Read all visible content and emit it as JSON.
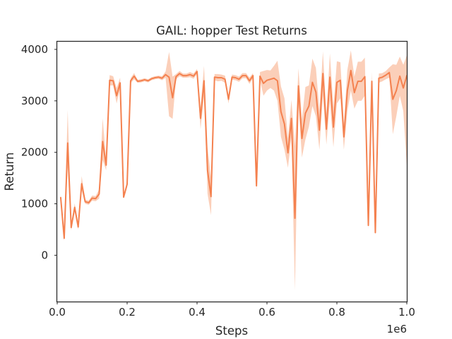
{
  "chart_data": {
    "type": "line",
    "title": "GAIL: hopper Test Returns",
    "xlabel": "Steps",
    "ylabel": "Return",
    "x_offset_label": "1e6",
    "xlim": [
      0,
      1.0
    ],
    "ylim": [
      -900,
      4150
    ],
    "x_ticks": [
      0.0,
      0.2,
      0.4,
      0.6,
      0.8,
      1.0
    ],
    "x_tick_labels": [
      "0.0",
      "0.2",
      "0.4",
      "0.6",
      "0.8",
      "1.0"
    ],
    "y_ticks": [
      0,
      1000,
      2000,
      3000,
      4000
    ],
    "y_tick_labels": [
      "0",
      "1000",
      "2000",
      "3000",
      "4000"
    ],
    "grid": false,
    "colors": {
      "line": "#f4814f",
      "band": "#f9bfa2",
      "spine": "#262626",
      "text": "#262626"
    },
    "series": [
      {
        "x": [
          0.01,
          0.02,
          0.03,
          0.04,
          0.05,
          0.06,
          0.07,
          0.08,
          0.09,
          0.1,
          0.11,
          0.12,
          0.13,
          0.14,
          0.15,
          0.16,
          0.17,
          0.18,
          0.19,
          0.2,
          0.21,
          0.22,
          0.23,
          0.24,
          0.25,
          0.26,
          0.27,
          0.28,
          0.29,
          0.3,
          0.31,
          0.32,
          0.33,
          0.34,
          0.35,
          0.36,
          0.37,
          0.38,
          0.39,
          0.4,
          0.41,
          0.42,
          0.43,
          0.44,
          0.45,
          0.46,
          0.47,
          0.48,
          0.49,
          0.5,
          0.51,
          0.52,
          0.53,
          0.54,
          0.55,
          0.56,
          0.57,
          0.58,
          0.59,
          0.6,
          0.61,
          0.62,
          0.63,
          0.64,
          0.65,
          0.66,
          0.67,
          0.68,
          0.69,
          0.7,
          0.71,
          0.72,
          0.73,
          0.74,
          0.75,
          0.76,
          0.77,
          0.78,
          0.79,
          0.8,
          0.81,
          0.82,
          0.83,
          0.84,
          0.85,
          0.86,
          0.87,
          0.88,
          0.89,
          0.9,
          0.91,
          0.92,
          0.93,
          0.94,
          0.95,
          0.96,
          0.97,
          0.98,
          0.99,
          1.0
        ],
        "y": [
          1120,
          330,
          2180,
          540,
          930,
          550,
          1390,
          1040,
          1020,
          1110,
          1100,
          1190,
          2210,
          1750,
          3400,
          3390,
          3100,
          3350,
          1130,
          1380,
          3390,
          3480,
          3380,
          3390,
          3410,
          3390,
          3430,
          3450,
          3460,
          3440,
          3510,
          3460,
          3060,
          3470,
          3530,
          3490,
          3490,
          3510,
          3480,
          3570,
          2660,
          3390,
          1650,
          1140,
          3460,
          3450,
          3450,
          3420,
          3030,
          3460,
          3450,
          3420,
          3490,
          3490,
          3390,
          3490,
          1350,
          3480,
          3340,
          3400,
          3420,
          3440,
          3390,
          2790,
          2550,
          1990,
          2660,
          720,
          3290,
          2270,
          2760,
          2900,
          3360,
          3170,
          2430,
          3530,
          2450,
          3460,
          2490,
          3360,
          3400,
          2300,
          3200,
          3590,
          3160,
          3380,
          3380,
          3470,
          580,
          3380,
          440,
          3440,
          3460,
          3500,
          3550,
          3030,
          3200,
          3480,
          3250,
          3490
        ],
        "lower": [
          1050,
          280,
          1700,
          480,
          850,
          500,
          1260,
          1000,
          980,
          1060,
          1050,
          1100,
          1850,
          1650,
          3300,
          3300,
          2950,
          3250,
          1100,
          1320,
          3340,
          3420,
          3350,
          3360,
          3380,
          3360,
          3400,
          3420,
          3430,
          3400,
          3450,
          2700,
          2650,
          3420,
          3480,
          3450,
          3450,
          3460,
          3430,
          3520,
          2450,
          3100,
          1200,
          780,
          3400,
          3380,
          3390,
          3350,
          2950,
          3410,
          3400,
          3370,
          3440,
          3440,
          3330,
          3440,
          1250,
          3400,
          3100,
          3200,
          3250,
          3200,
          3000,
          2300,
          2050,
          1700,
          2300,
          -680,
          2950,
          1900,
          2250,
          2500,
          2900,
          2700,
          2050,
          3100,
          2150,
          3000,
          2100,
          2950,
          3050,
          2050,
          2800,
          3200,
          2850,
          3000,
          3000,
          3100,
          500,
          3200,
          380,
          3350,
          3380,
          3420,
          3450,
          2350,
          2700,
          3100,
          2800,
          1750
        ],
        "upper": [
          1190,
          380,
          2820,
          600,
          1010,
          600,
          1540,
          1080,
          1060,
          1160,
          1150,
          1280,
          2660,
          1850,
          3500,
          3480,
          3250,
          3450,
          1160,
          1440,
          3440,
          3540,
          3410,
          3420,
          3440,
          3420,
          3460,
          3480,
          3490,
          3480,
          3570,
          3950,
          3470,
          3520,
          3580,
          3530,
          3530,
          3560,
          3530,
          3620,
          2870,
          3680,
          2100,
          1500,
          3520,
          3520,
          3510,
          3490,
          3110,
          3510,
          3500,
          3470,
          3540,
          3540,
          3450,
          3540,
          1450,
          3560,
          3580,
          3600,
          3590,
          3680,
          3780,
          3280,
          3050,
          2280,
          3020,
          2120,
          3630,
          2640,
          3270,
          3300,
          3820,
          3640,
          2810,
          3960,
          2750,
          3920,
          2880,
          3770,
          3750,
          2550,
          3600,
          3980,
          3470,
          3760,
          3760,
          3840,
          660,
          3560,
          500,
          3530,
          3540,
          3580,
          3650,
          3710,
          3700,
          3860,
          3700,
          3880
        ]
      }
    ]
  }
}
